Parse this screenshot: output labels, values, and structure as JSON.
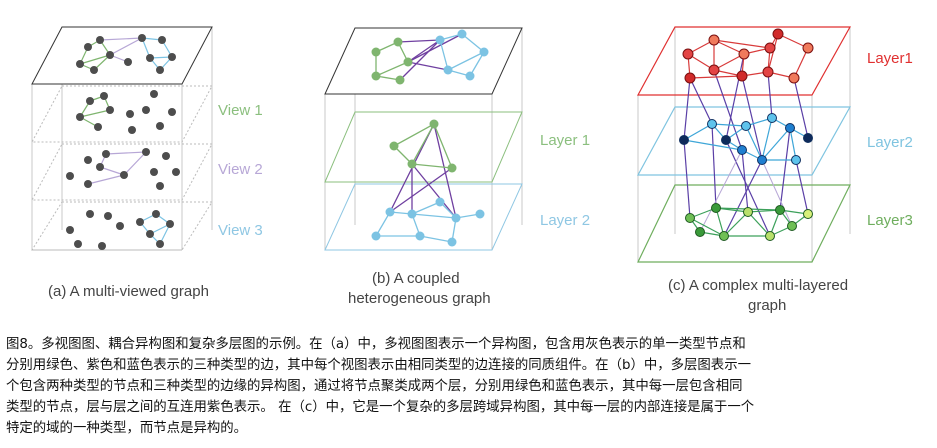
{
  "panels": {
    "a": {
      "caption": "(a) A multi-viewed graph",
      "view_labels": [
        "View 1",
        "View 2",
        "View 3"
      ],
      "view_colors": [
        "#8bbf7e",
        "#b7a7d6",
        "#8fc7e3"
      ]
    },
    "b": {
      "caption_line1": "(b) A coupled",
      "caption_line2": "heterogeneous graph",
      "layer_labels": [
        "Layer 1",
        "Layer 2"
      ],
      "layer_colors": [
        "#8bbf7e",
        "#8fc7e3"
      ]
    },
    "c": {
      "caption_line1": "(c) A complex multi-layered",
      "caption_line2": "graph",
      "layer_labels": [
        "Layer1",
        "Layer2",
        "Layer3"
      ],
      "layer_colors": [
        "#e03030",
        "#7fc4e0",
        "#6fae5e"
      ]
    }
  },
  "colors": {
    "node_gray": "#4d4d4d",
    "green": "#7fb56f",
    "purple": "#6f3fa0",
    "blue": "#7cc3e3",
    "red": "#d83a3a"
  },
  "caption_lines": [
    "图8。多视图图、耦合异构图和复杂多层图的示例。在（a）中，多视图图表示一个异构图，包含用灰色表示的单一类型节点和",
    "分别用绿色、紫色和蓝色表示的三种类型的边，其中每个视图表示由相同类型的边连接的同质组件。在（b）中，多层图表示一",
    "个包含两种类型的节点和三种类型的边缘的异构图，通过将节点聚类成两个层，分别用绿色和蓝色表示，其中每一层包含相同",
    "类型的节点，层与层之间的互连用紫色表示。 在（c）中，它是一个复杂的多层跨域异构图，其中每一层的内部连接是属于一个",
    "特定的域的一种类型，而节点是异构的。"
  ]
}
